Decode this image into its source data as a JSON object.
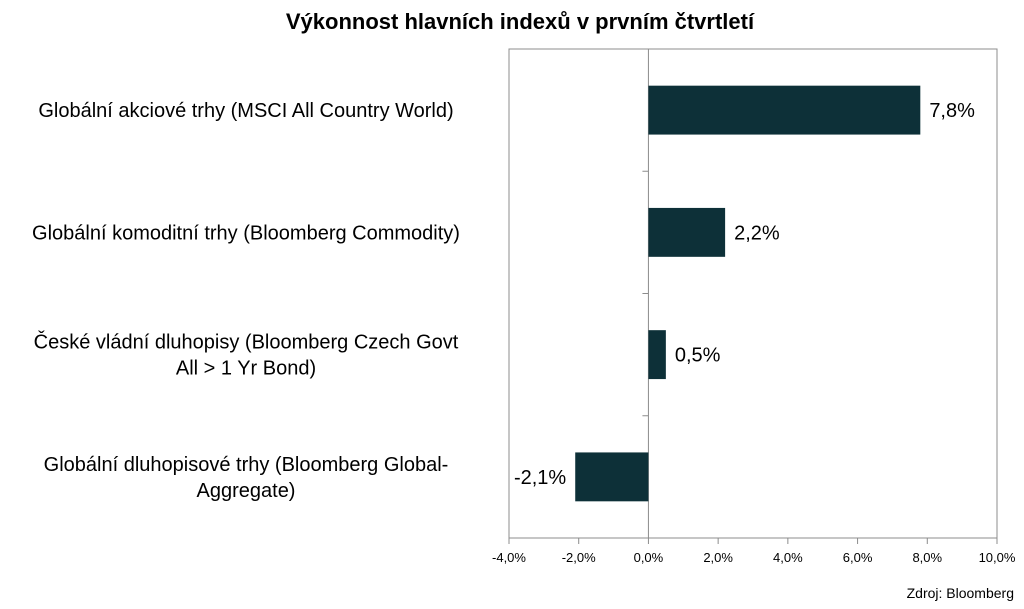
{
  "chart_data": {
    "type": "bar",
    "orientation": "horizontal",
    "title": "Výkonnost hlavních indexů v prvním čtvrtletí",
    "categories": [
      [
        "Globální akciové trhy (MSCI All Country World)"
      ],
      [
        "Globální komoditní trhy (Bloomberg Commodity)"
      ],
      [
        "České vládní dluhopisy (Bloomberg Czech Govt",
        "All > 1 Yr Bond)"
      ],
      [
        "Globální dluhopisové trhy (Bloomberg Global-",
        "Aggregate)"
      ]
    ],
    "values": [
      7.8,
      2.2,
      0.5,
      -2.1
    ],
    "value_labels": [
      "7,8%",
      "2,2%",
      "0,5%",
      "-2,1%"
    ],
    "xlim": [
      -4.0,
      10.0
    ],
    "xticks": [
      -4,
      -2,
      0,
      2,
      4,
      6,
      8,
      10
    ],
    "xtick_labels": [
      "-4,0%",
      "-2,0%",
      "0,0%",
      "2,0%",
      "4,0%",
      "6,0%",
      "8,0%",
      "10,0%"
    ],
    "bar_color": "#0d3038",
    "grid": false,
    "legend": "none"
  },
  "source": "Zdroj: Bloomberg"
}
